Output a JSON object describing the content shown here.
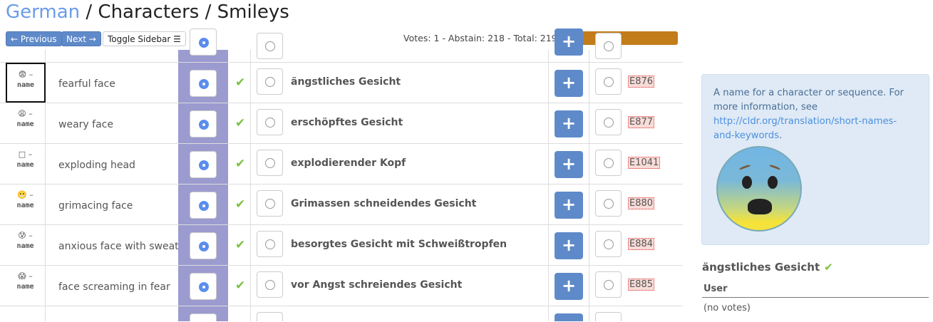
{
  "header": {
    "locale": "German",
    "sep1": " / ",
    "section": "Characters",
    "sep2": " / ",
    "page": "Smileys"
  },
  "toolbar": {
    "previous": "← Previous",
    "next": "Next →",
    "toggle_sidebar": "Toggle Sidebar ☰"
  },
  "status": {
    "votes_text": "Votes: 1 - Abstain: 218 - Total: 219",
    "progress_color": "#c27c1a"
  },
  "colors": {
    "winning_column": "#9b9bd0",
    "accent": "#5f8ac9",
    "check": "#7ac142"
  },
  "rows": [
    {
      "emoji": "😨",
      "sep": " –",
      "code": "name",
      "english": "fearful face",
      "winning": "ängstliches Gesicht",
      "error_code": "E876"
    },
    {
      "emoji": "😩",
      "sep": " –",
      "code": "name",
      "english": "weary face",
      "winning": "erschöpftes Gesicht",
      "error_code": "E877"
    },
    {
      "emoji": "□",
      "sep": " –",
      "code": "name",
      "english": "exploding head",
      "winning": "explodierender Kopf",
      "error_code": "E1041"
    },
    {
      "emoji": "😬",
      "sep": " –",
      "code": "name",
      "english": "grimacing face",
      "winning": "Grimassen schneidendes Gesicht",
      "error_code": "E880"
    },
    {
      "emoji": "😰",
      "sep": " –",
      "code": "name",
      "english": "anxious face with sweat",
      "winning": "besorgtes Gesicht mit Schweißtropfen",
      "error_code": "E884"
    },
    {
      "emoji": "😱",
      "sep": " –",
      "code": "name",
      "english": "face screaming in fear",
      "winning": "vor Angst schreiendes Gesicht",
      "error_code": "E885"
    }
  ],
  "sidebar": {
    "info_text": "A name for a character or sequence. For more information, see ",
    "info_link": "http://cldr.org/translation/short-names-and-keywords",
    "info_end": ".",
    "preview_icon": "fearful-face-emoji",
    "value_title": "ängstliches Gesicht",
    "check": "✔",
    "user_header": "User",
    "no_votes": "(no votes)"
  }
}
